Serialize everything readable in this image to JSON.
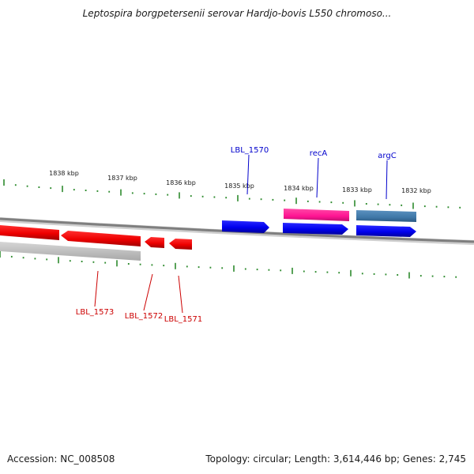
{
  "title": "Leptospira borgpetersenii serovar Hardjo-bovis L550 chromoso...",
  "footer": {
    "accession": "Accession: NC_008508",
    "summary": "Topology: circular; Length: 3,614,446 bp; Genes: 2,745"
  },
  "colors": {
    "backbone": "#8a8a8a",
    "tick": "#2e8b2e",
    "forward_gene": "#0000ee",
    "reverse_gene": "#ee0000",
    "rna_gene": "#ff1493",
    "reverse_shadow": "#bdbdbd",
    "argC_alt": "#3f78a8",
    "upper_label": "#0000cc",
    "lower_label": "#cc0000"
  },
  "kbp_labels": [
    "1838 kbp",
    "1837 kbp",
    "1836 kbp",
    "1835 kbp",
    "1834 kbp",
    "1833 kbp",
    "1832 kbp"
  ],
  "upper_gene_labels": [
    "LBL_1570",
    "recA",
    "argC"
  ],
  "lower_gene_labels": [
    "LBL_1573",
    "LBL_1572",
    "LBL_1571"
  ]
}
